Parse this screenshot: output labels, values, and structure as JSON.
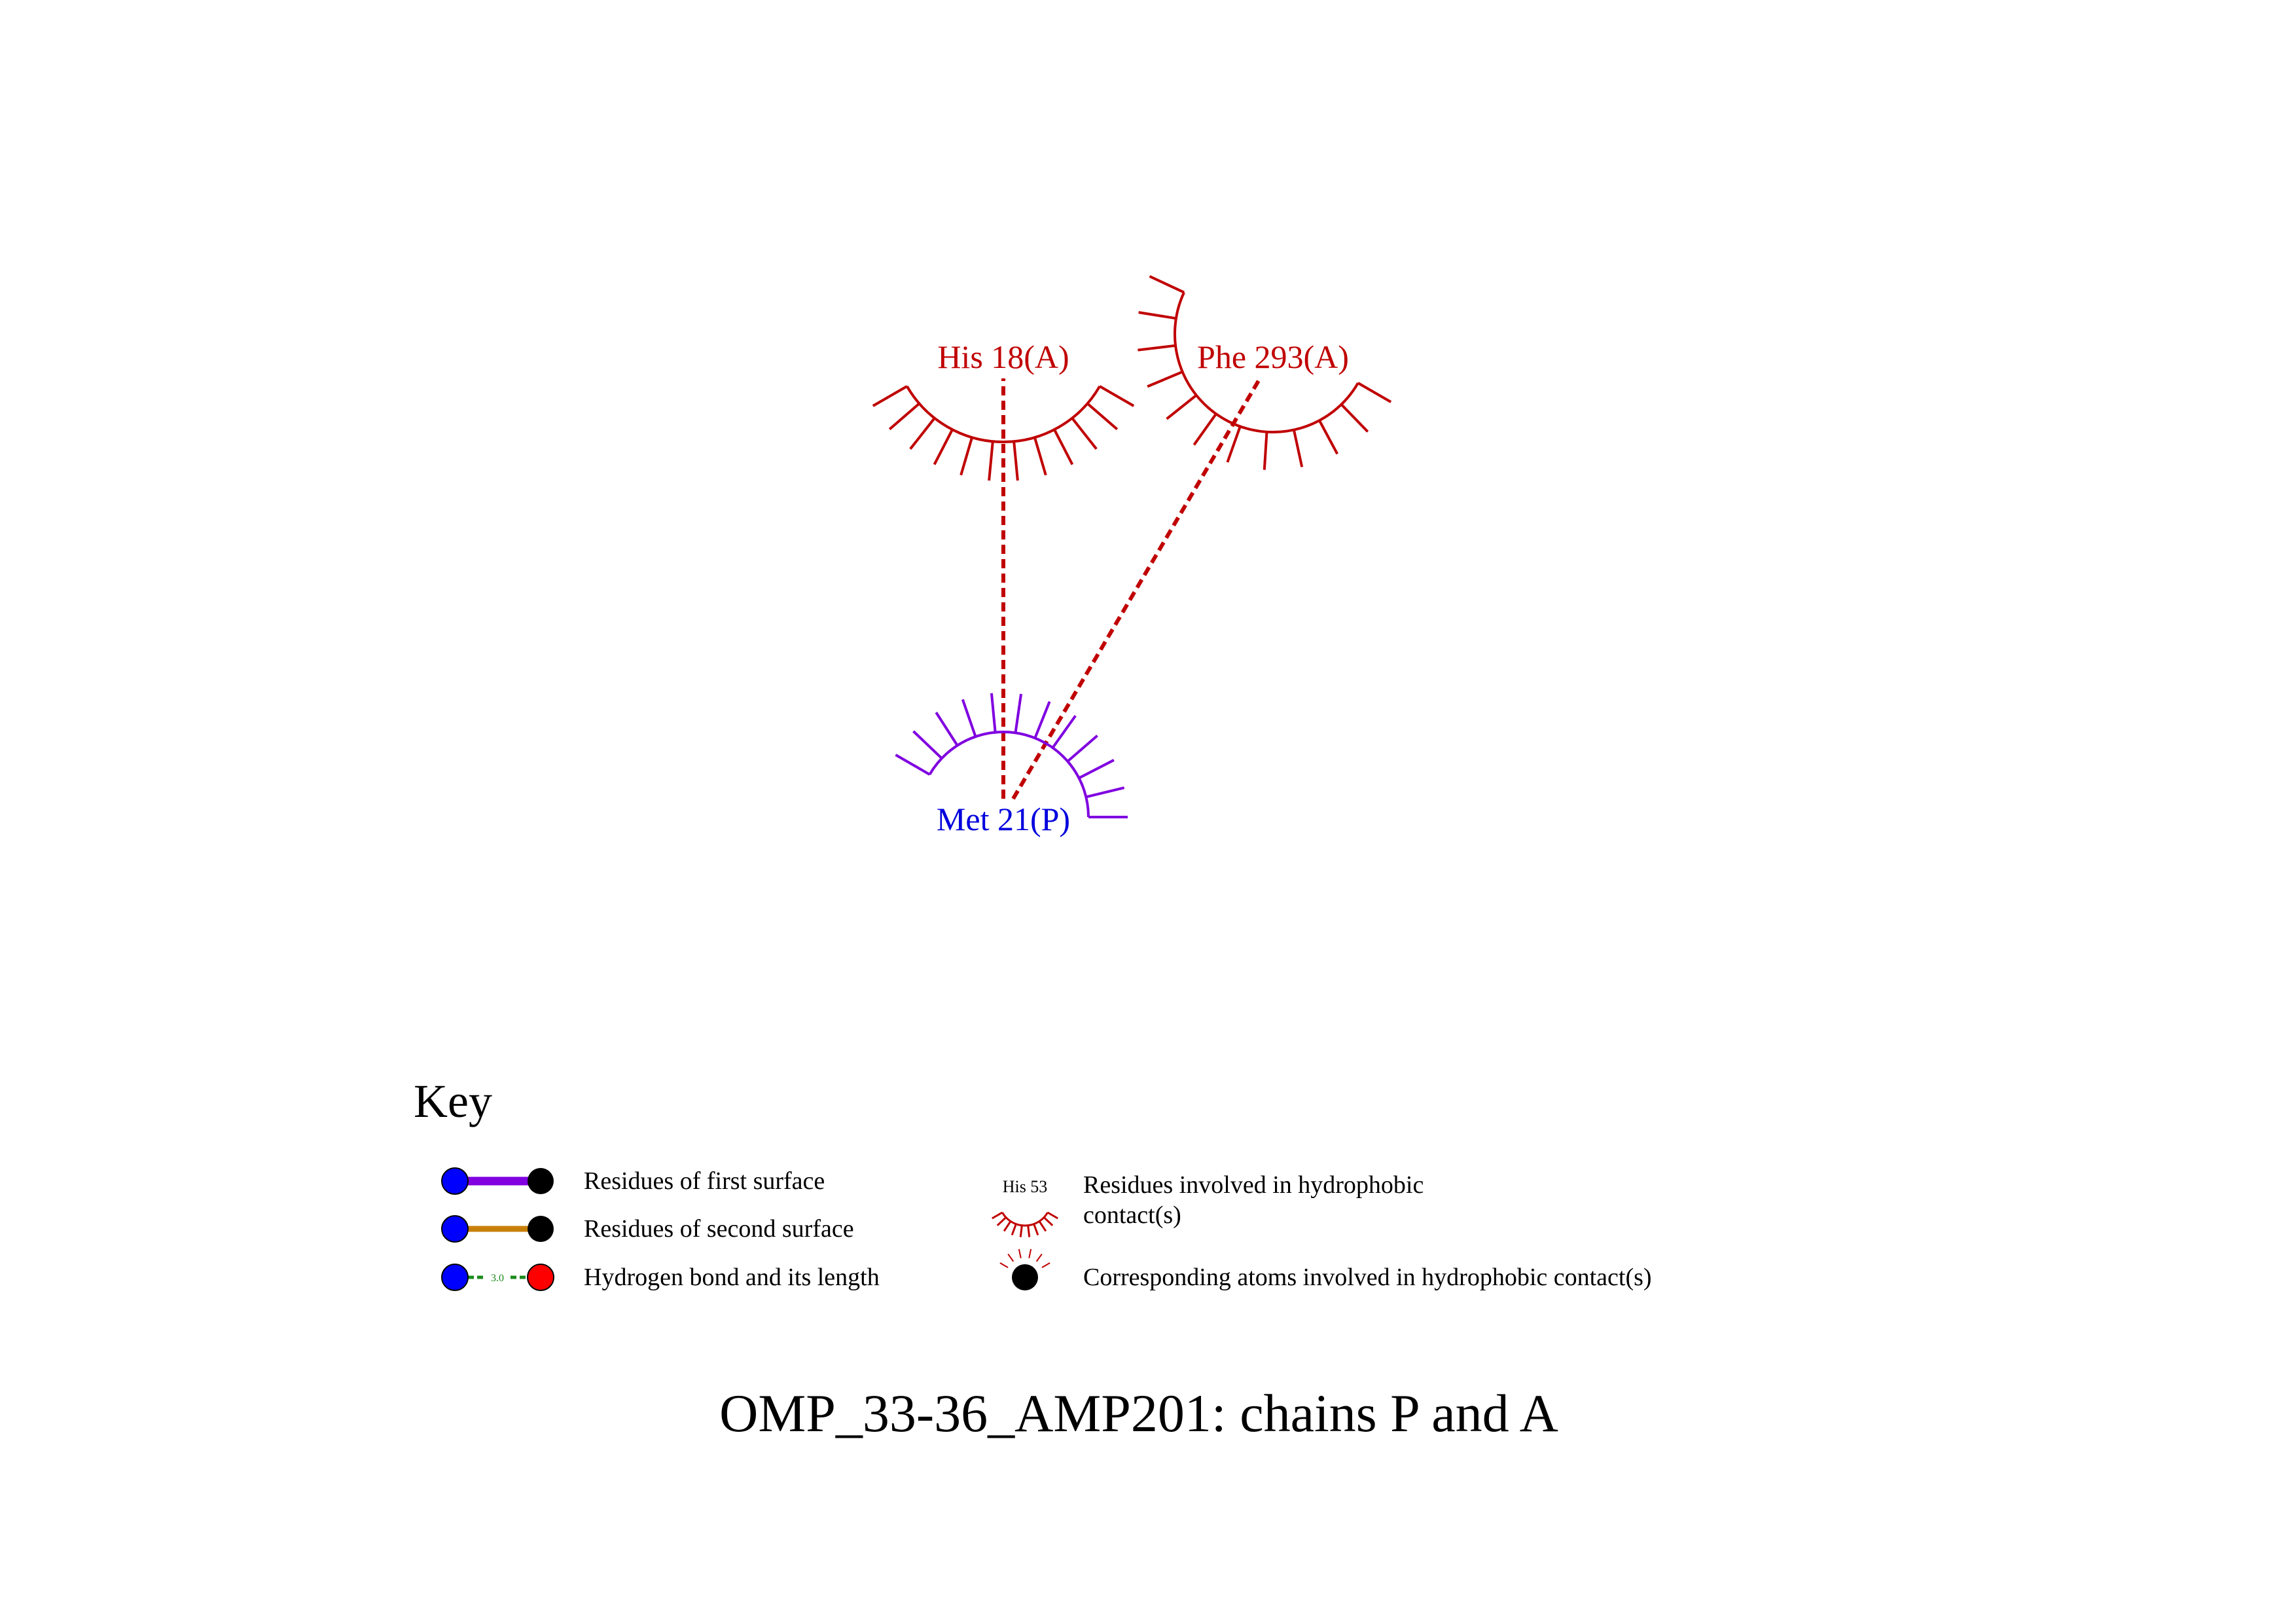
{
  "residues": {
    "his18": {
      "label": "His 18(A)",
      "color": "#c00000",
      "chain": "A"
    },
    "phe293": {
      "label": "Phe 293(A)",
      "color": "#c00000",
      "chain": "A"
    },
    "met21": {
      "label": "Met 21(P)",
      "color": "#0000dd",
      "arc_color": "#8000e0",
      "chain": "P"
    }
  },
  "contacts": [
    {
      "from": "met21",
      "to": "his18",
      "type": "hydrophobic",
      "color": "#c00000"
    },
    {
      "from": "met21",
      "to": "phe293",
      "type": "hydrophobic",
      "color": "#c00000"
    }
  ],
  "key": {
    "title": "Key",
    "first_surface": "Residues of first surface",
    "second_surface": "Residues of second surface",
    "hbond": "Hydrogen bond and its length",
    "hbond_length": "3.0",
    "hydrophobic_example": "His 53",
    "hydrophobic_line1": "Residues involved in hydrophobic",
    "hydrophobic_line2": "contact(s)",
    "atoms": "Corresponding atoms involved in hydrophobic contact(s)",
    "colors": {
      "first_surface": "#8000e0",
      "second_surface": "#c87f0a",
      "hbond": "#1a8a1a",
      "atom_blue": "#0000ff",
      "atom_black": "#000000",
      "atom_red": "#ff0000"
    }
  },
  "caption": "OMP_33-36_AMP201: chains P and A"
}
